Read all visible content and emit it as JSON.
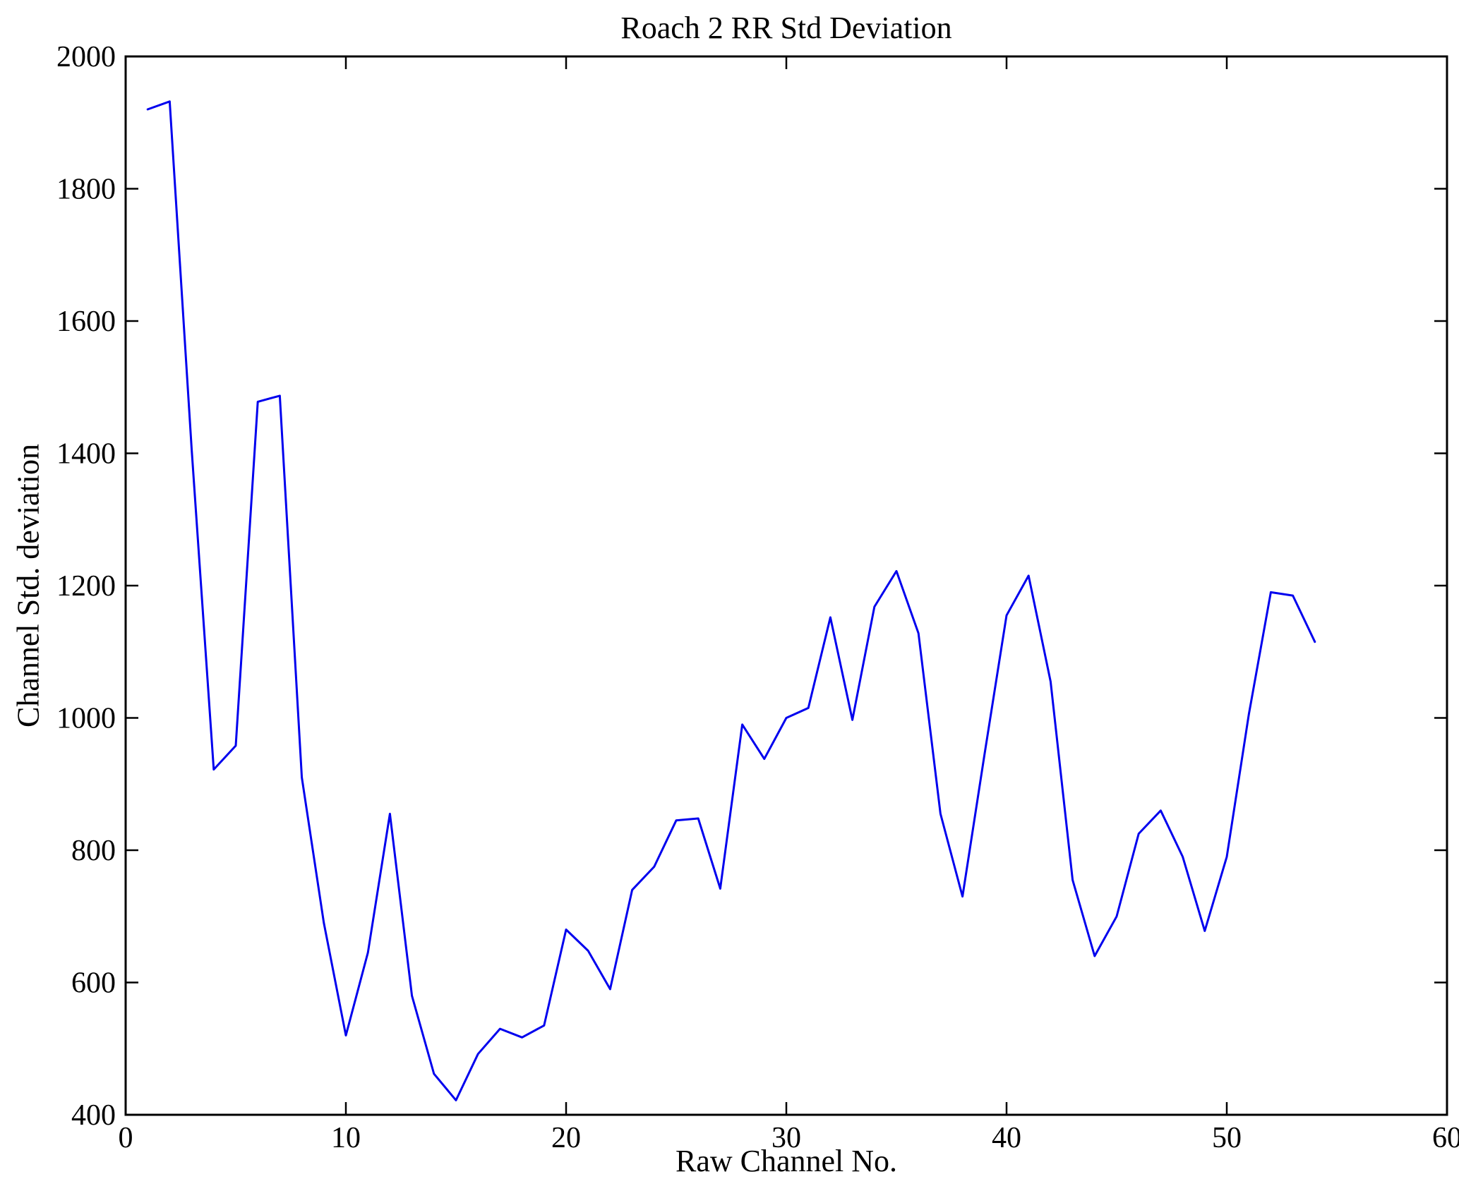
{
  "chart": {
    "title": "Roach 2 RR Std Deviation",
    "xlabel": "Raw Channel No.",
    "ylabel": "Channel Std. deviation"
  },
  "chart_data": {
    "type": "line",
    "title": "Roach 2 RR Std Deviation",
    "xlabel": "Raw Channel No.",
    "ylabel": "Channel Std. deviation",
    "xlim": [
      0,
      60
    ],
    "ylim": [
      400,
      2000
    ],
    "x_ticks": [
      0,
      10,
      20,
      30,
      40,
      50,
      60
    ],
    "y_ticks": [
      400,
      600,
      800,
      1000,
      1200,
      1400,
      1600,
      1800,
      2000
    ],
    "grid": false,
    "legend": false,
    "line_color": "#0000ee",
    "axis_color": "#000000",
    "x": [
      1,
      2,
      3,
      4,
      5,
      6,
      7,
      8,
      9,
      10,
      11,
      12,
      13,
      14,
      15,
      16,
      17,
      18,
      19,
      20,
      21,
      22,
      23,
      24,
      25,
      26,
      27,
      28,
      29,
      30,
      31,
      32,
      33,
      34,
      35,
      36,
      37,
      38,
      39,
      40,
      41,
      42,
      43,
      44,
      45,
      46,
      47,
      48,
      49,
      50,
      51,
      52,
      53,
      54
    ],
    "y": [
      1920,
      1932,
      1405,
      922,
      958,
      1478,
      1487,
      910,
      690,
      520,
      645,
      855,
      580,
      462,
      422,
      492,
      530,
      517,
      535,
      680,
      648,
      590,
      740,
      775,
      845,
      848,
      742,
      990,
      938,
      1000,
      1015,
      1152,
      997,
      1168,
      1222,
      1128,
      855,
      730,
      945,
      1155,
      1215,
      1055,
      755,
      640,
      700,
      825,
      860,
      790,
      678,
      790,
      1005,
      1190,
      1185,
      1115
    ]
  }
}
